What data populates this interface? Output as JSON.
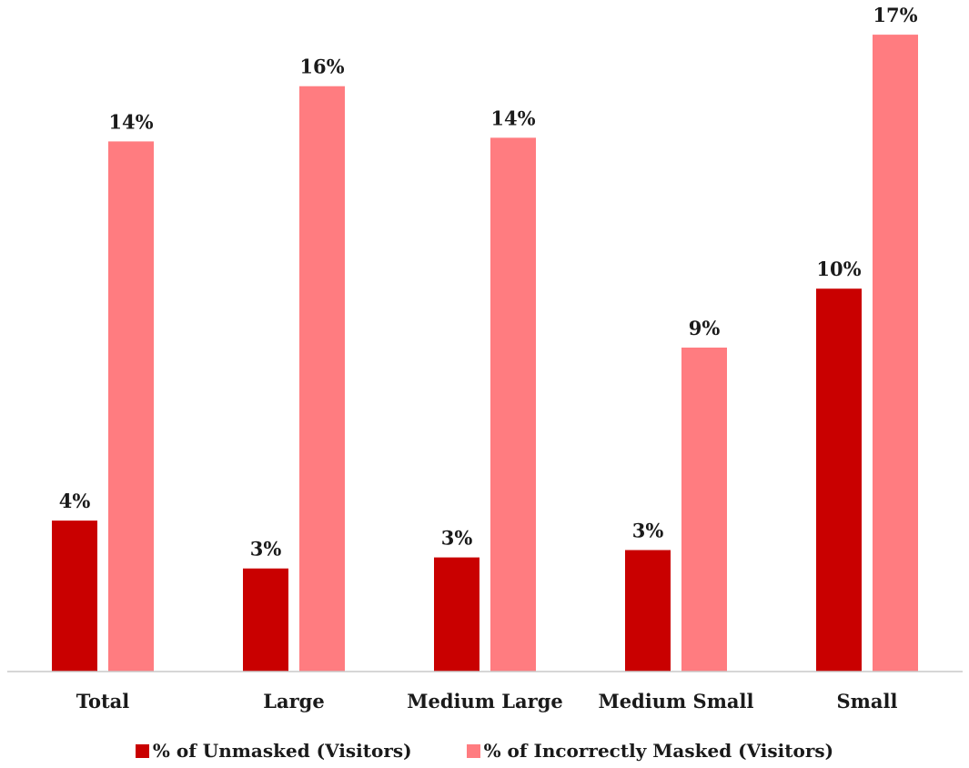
{
  "chart_data": {
    "type": "bar",
    "categories": [
      "Total",
      "Large",
      "Medium Large",
      "Medium Small",
      "Small"
    ],
    "series": [
      {
        "name": "% of Unmasked (Visitors)",
        "color": "#c90000",
        "values": [
          4.1,
          2.8,
          3.1,
          3.3,
          10.4
        ],
        "labels": [
          "4%",
          "3%",
          "3%",
          "3%",
          "10%"
        ]
      },
      {
        "name": "% of Incorrectly Masked (Visitors)",
        "color": "#ff7c80",
        "values": [
          14.4,
          15.9,
          14.5,
          8.8,
          17.3
        ],
        "labels": [
          "14%",
          "16%",
          "14%",
          "9%",
          "17%"
        ]
      }
    ],
    "title": "",
    "xlabel": "",
    "ylabel": "",
    "ylim": [
      0,
      17.5
    ],
    "grid": false,
    "legend_position": "bottom"
  }
}
